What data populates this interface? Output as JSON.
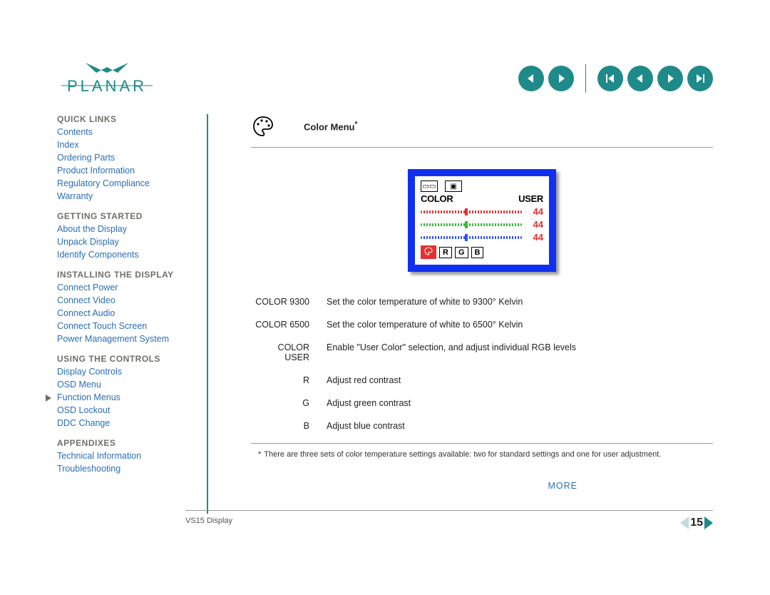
{
  "brand_name": "PLANAR",
  "brand_color": "#1f8a8a",
  "link_color": "#2a6fb5",
  "header_nav": {
    "icon_bg": "#1f8a8a",
    "icon_fg": "#ffffff"
  },
  "sidebar": {
    "sections": [
      {
        "title": "QUICK LINKS",
        "items": [
          "Contents",
          "Index",
          "Ordering Parts",
          "Product Information",
          "Regulatory Compliance",
          "Warranty"
        ]
      },
      {
        "title": "GETTING STARTED",
        "items": [
          "About the Display",
          "Unpack Display",
          "Identify Components"
        ]
      },
      {
        "title": "INSTALLING THE DISPLAY",
        "items": [
          "Connect Power",
          "Connect Video",
          "Connect Audio",
          "Connect Touch Screen",
          "Power Management System"
        ]
      },
      {
        "title": "USING THE CONTROLS",
        "items": [
          "Display Controls",
          "OSD Menu",
          "Function Menus",
          "OSD Lockout",
          "DDC Change"
        ],
        "current_index": 2
      },
      {
        "title": "APPENDIXES",
        "items": [
          "Technical Information",
          "Troubleshooting"
        ]
      }
    ]
  },
  "content": {
    "title": "Color Menu",
    "title_superscript": "*",
    "osd": {
      "head_left": "COLOR",
      "head_right": "USER",
      "sliders": [
        {
          "color": "#e63030",
          "value": 44,
          "pct": 44
        },
        {
          "color": "#2ac22a",
          "value": 44,
          "pct": 44
        },
        {
          "color": "#3050ff",
          "value": 44,
          "pct": 44
        }
      ],
      "chips": [
        "R",
        "G",
        "B"
      ]
    },
    "rows": [
      {
        "label": "COLOR 9300",
        "desc": "Set the color temperature of white to 9300° Kelvin"
      },
      {
        "label": "COLOR 6500",
        "desc": "Set the color temperature of white to 6500° Kelvin"
      },
      {
        "label": "COLOR USER",
        "desc": "Enable \"User Color\" selection, and adjust individual RGB levels"
      },
      {
        "label": "R",
        "desc": "Adjust red contrast"
      },
      {
        "label": "G",
        "desc": "Adjust green contrast"
      },
      {
        "label": "B",
        "desc": "Adjust blue contrast"
      }
    ],
    "footnote": "There are three sets of color temperature settings available: two for standard settings and one for user adjustment.",
    "more_label": "MORE",
    "footer_label": "VS15 Display",
    "page_number": "15"
  }
}
